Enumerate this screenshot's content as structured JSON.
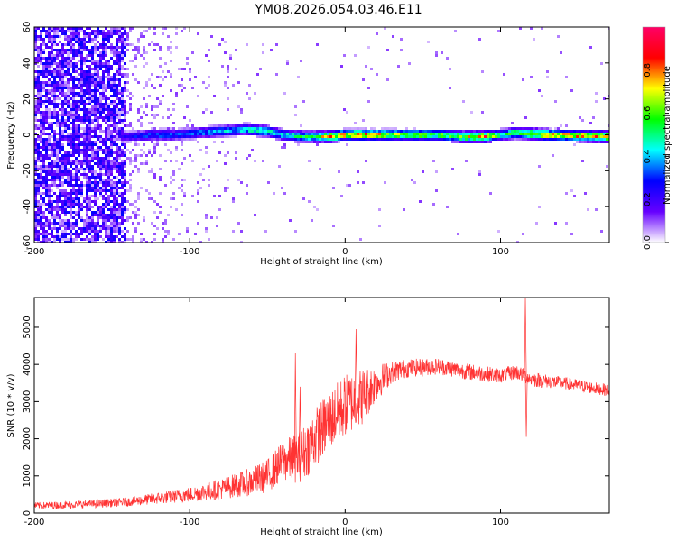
{
  "title": "YM08.2026.054.03.46.E11",
  "chart_data": [
    {
      "type": "heatmap",
      "name": "spectrogram",
      "xlabel": "Height of straight line (km)",
      "ylabel": "Frequency (Hz)",
      "xlim": [
        -200,
        170
      ],
      "ylim": [
        -60,
        60
      ],
      "xticks": [
        -200,
        -100,
        0,
        100
      ],
      "xticklabels": [
        "-200",
        "-100",
        "0",
        "100"
      ],
      "yticks": [
        -60,
        -40,
        -20,
        0,
        20,
        40,
        60
      ],
      "yticklabels": [
        "-60",
        "-40",
        "-20",
        "0",
        "20",
        "40",
        "60"
      ],
      "colorbar": {
        "label": "Normalized spectral amplitude",
        "range": [
          0,
          1
        ],
        "ticks": [
          0,
          0.2,
          0.4,
          0.6,
          0.8
        ],
        "ticklabels": [
          "0.0",
          "0.2",
          "0.4",
          "0.6",
          "0.8"
        ],
        "colormap": [
          "#ffffff",
          "#6600ff",
          "#0000ff",
          "#00ffff",
          "#00ff00",
          "#ffff00",
          "#ff0000",
          "#ff0066"
        ]
      },
      "band_profile": {
        "x": [
          -140,
          -125,
          -110,
          -95,
          -80,
          -65,
          -50,
          -40,
          -25,
          -10,
          0,
          10,
          30,
          60,
          75,
          90,
          100,
          110,
          130,
          170
        ],
        "center_hz": [
          -1,
          0,
          0,
          1,
          2,
          3,
          2,
          0,
          -1,
          -1,
          0,
          0,
          0,
          0,
          -1,
          -1,
          0,
          1,
          0,
          -1
        ],
        "peak_amplitude": [
          0.25,
          0.35,
          0.35,
          0.35,
          0.4,
          0.45,
          0.5,
          0.45,
          0.55,
          0.75,
          0.8,
          0.8,
          0.7,
          0.6,
          0.65,
          0.85,
          0.5,
          0.6,
          0.75,
          0.8
        ]
      },
      "noise_region": {
        "x_from": -200,
        "x_to": -140,
        "level": 0.25
      }
    },
    {
      "type": "line",
      "name": "snr",
      "xlabel": "Height of straight line (km)",
      "ylabel": "SNR (10 * v/v)",
      "xlim": [
        -200,
        170
      ],
      "ylim": [
        0,
        5800
      ],
      "xticks": [
        -200,
        -100,
        0,
        100
      ],
      "xticklabels": [
        "-200",
        "-100",
        "0",
        "100"
      ],
      "yticks": [
        0,
        1000,
        2000,
        3000,
        4000,
        5000
      ],
      "yticklabels": [
        "0",
        "1000",
        "2000",
        "3000",
        "4000",
        "5000"
      ],
      "series_color": "#ff3333",
      "series": [
        {
          "name": "SNR",
          "x": [
            -200,
            -180,
            -160,
            -140,
            -120,
            -100,
            -80,
            -60,
            -50,
            -40,
            -30,
            -25,
            -20,
            -10,
            0,
            10,
            20,
            30,
            40,
            60,
            80,
            100,
            110,
            115,
            120,
            140,
            170
          ],
          "y": [
            200,
            220,
            250,
            300,
            400,
            500,
            650,
            850,
            1000,
            1400,
            1500,
            1700,
            2000,
            2500,
            2900,
            3100,
            3500,
            3800,
            3900,
            3950,
            3800,
            3700,
            3800,
            3700,
            3600,
            3500,
            3300
          ],
          "spread": [
            90,
            100,
            110,
            120,
            160,
            200,
            280,
            380,
            450,
            550,
            700,
            750,
            800,
            800,
            850,
            800,
            500,
            300,
            250,
            220,
            220,
            200,
            200,
            200,
            200,
            170,
            160
          ],
          "spikes": [
            {
              "x": -32,
              "y": 4300
            },
            {
              "x": -29,
              "y": 3400
            },
            {
              "x": 7,
              "y": 4950
            },
            {
              "x": 116,
              "y": 5800
            },
            {
              "x": 116.6,
              "y": 2050
            }
          ]
        }
      ]
    }
  ]
}
